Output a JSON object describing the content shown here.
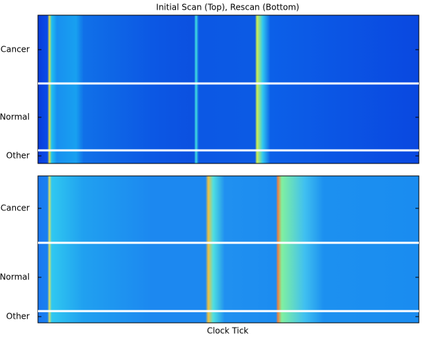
{
  "chart_data": {
    "type": "heatmap",
    "title": "Initial Scan (Top), Rescan (Bottom)",
    "xlabel": "Clock Tick",
    "panels": [
      {
        "yticks": [
          "Cancer",
          "Normal",
          "Other"
        ]
      },
      {
        "yticks": [
          "Cancer",
          "Normal",
          "Other"
        ]
      }
    ]
  }
}
